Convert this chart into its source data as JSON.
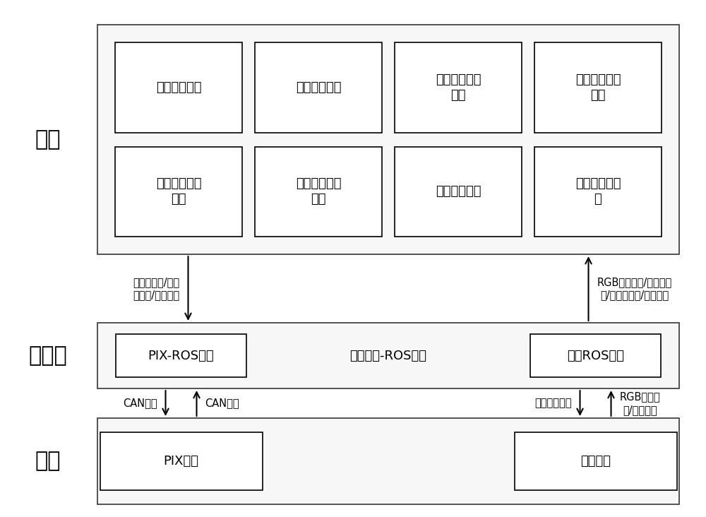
{
  "bg_color": "#ffffff",
  "software_label": "软件",
  "middleware_label": "中间件",
  "hardware_label": "硬件",
  "software_boxes_row1": [
    "目标检测模块",
    "目标跟踪模块",
    "目标丢失判断\n模块",
    "目标居中保持\n模块"
  ],
  "software_boxes_row2": [
    "云台相机控制\n模块",
    "目标距离估计\n模块",
    "底盘控制模块",
    "巡视重检测模\n块"
  ],
  "middleware_boxes": [
    "PIX-ROS驱动",
    "部署平台-ROS系统",
    "相机ROS驱动"
  ],
  "hardware_boxes": [
    "PIX底盘",
    "云台相机"
  ],
  "arrow_sw_to_mw": "偏航角参数/转向\n角参数/速度参数",
  "arrow_mw_to_sw": "RGB图像数据/偏航角参\n数/转向角参数/速度参数",
  "arrow_can_down": "CAN数据",
  "arrow_can_up": "CAN数据",
  "arrow_serial_down": "串口指令数据",
  "arrow_rgb_up": "RGB图像数\n据/串口数据",
  "font_size_layer_label": 22,
  "font_size_box": 13,
  "font_size_arrow": 10.5
}
